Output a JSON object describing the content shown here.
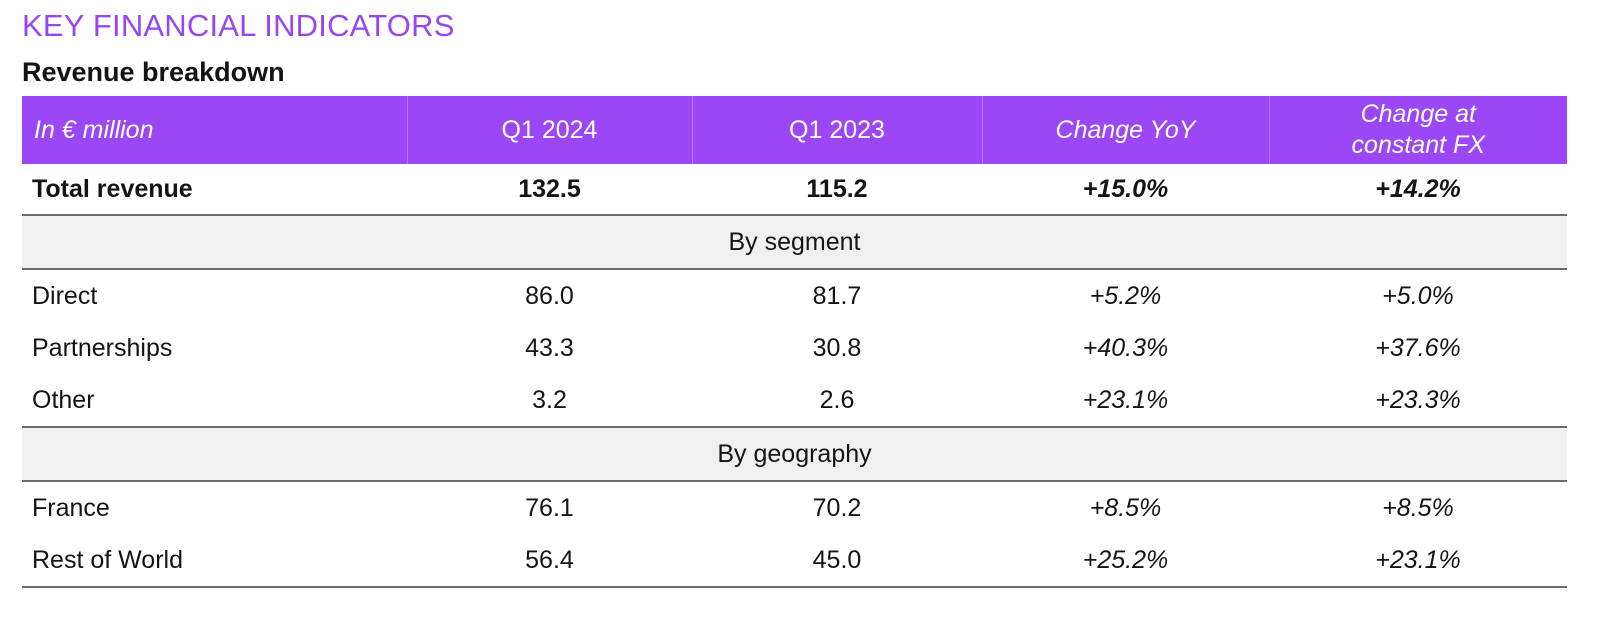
{
  "kicker": "KEY FINANCIAL INDICATORS",
  "subtitle": "Revenue breakdown",
  "colors": {
    "accent": "#9747f2",
    "header_bg": "#9b47f5",
    "section_bg": "#f0f0f0"
  },
  "table": {
    "headers": [
      "In € million",
      "Q1 2024",
      "Q1 2023",
      "Change YoY",
      "Change at constant FX"
    ],
    "total": {
      "label": "Total revenue",
      "q1_2024": "132.5",
      "q1_2023": "115.2",
      "yoy": "+15.0%",
      "fx": "+14.2%"
    },
    "segment": {
      "title": "By segment",
      "rows": [
        {
          "label": "Direct",
          "q1_2024": "86.0",
          "q1_2023": "81.7",
          "yoy": "+5.2%",
          "fx": "+5.0%"
        },
        {
          "label": "Partnerships",
          "q1_2024": "43.3",
          "q1_2023": "30.8",
          "yoy": "+40.3%",
          "fx": "+37.6%"
        },
        {
          "label": "Other",
          "q1_2024": "3.2",
          "q1_2023": "2.6",
          "yoy": "+23.1%",
          "fx": "+23.3%"
        }
      ]
    },
    "geography": {
      "title": "By geography",
      "rows": [
        {
          "label": "France",
          "q1_2024": "76.1",
          "q1_2023": "70.2",
          "yoy": "+8.5%",
          "fx": "+8.5%"
        },
        {
          "label": "Rest of World",
          "q1_2024": "56.4",
          "q1_2023": "45.0",
          "yoy": "+25.2%",
          "fx": "+23.1%"
        }
      ]
    }
  }
}
